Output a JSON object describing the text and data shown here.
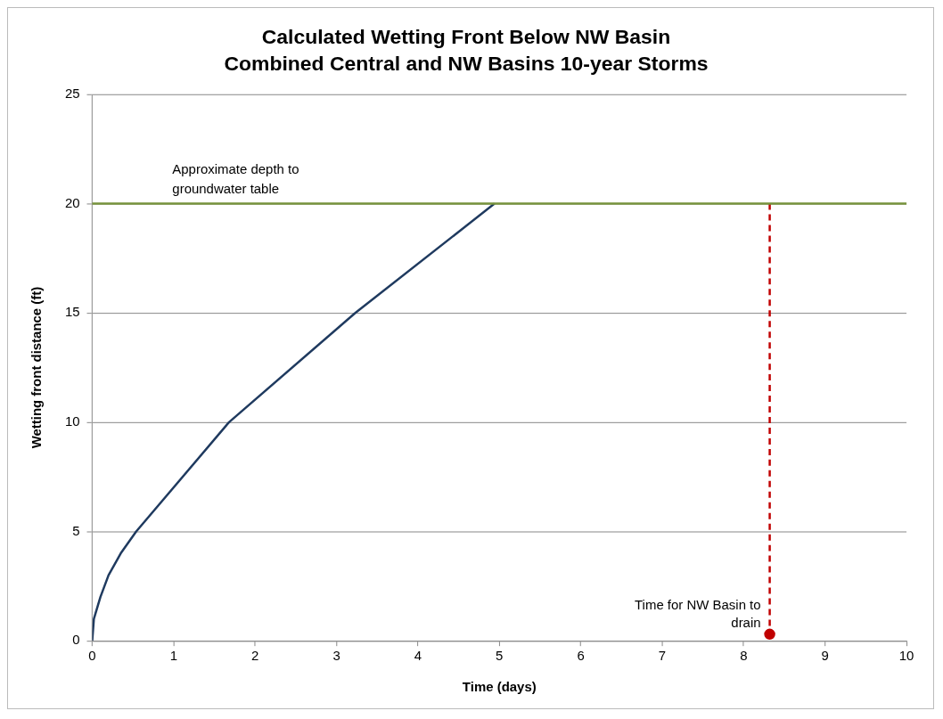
{
  "chart_data": {
    "type": "line",
    "title": "Calculated Wetting Front Below NW Basin",
    "subtitle": "Combined Central and NW Basins 10-year Storms",
    "xlabel": "Time (days)",
    "ylabel": "Wetting front distance (ft)",
    "xlim": [
      0,
      10
    ],
    "xticks": [
      0,
      1,
      2,
      3,
      4,
      5,
      6,
      7,
      8,
      9,
      10
    ],
    "ylim": [
      0,
      25
    ],
    "yticks": [
      0,
      5,
      10,
      15,
      20,
      25
    ],
    "grid": "y",
    "legend": false,
    "series": [
      {
        "color": "#1f3a5f",
        "marker": "none",
        "line_style": "solid",
        "x": [
          0,
          0.02,
          0.1,
          0.2,
          0.35,
          0.54,
          1.68,
          3.23,
          4.94
        ],
        "values": [
          0,
          1,
          2,
          3,
          4,
          5,
          10,
          15,
          20
        ]
      },
      {
        "color": "#c00000",
        "marker": "none",
        "line_style": "dashed",
        "x": [
          8.32,
          8.32
        ],
        "values": [
          20,
          0.3
        ]
      },
      {
        "type": "scatter",
        "color": "#c00000",
        "marker": "circle",
        "x": [
          8.32
        ],
        "values": [
          0.3
        ]
      }
    ],
    "ref_lines": [
      {
        "axis": "y",
        "value": 20,
        "label": "Approximate depth to groundwater table",
        "color": "#77933c",
        "line_style": "solid"
      }
    ],
    "annotations": [
      {
        "text": "Time for NW Basin to drain",
        "x": 8.32,
        "y": 0.3
      }
    ]
  }
}
